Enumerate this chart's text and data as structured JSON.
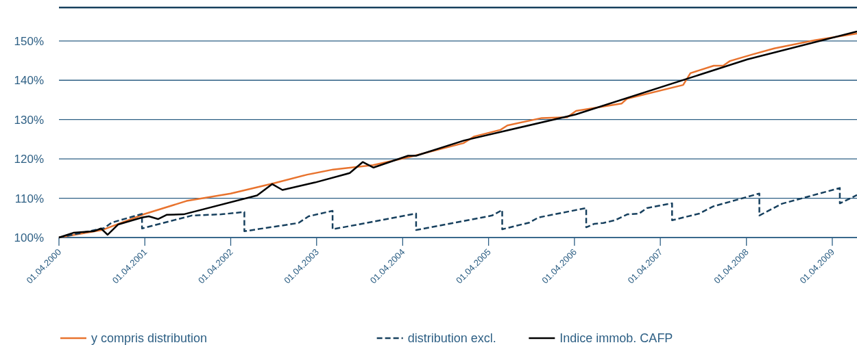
{
  "chart_data": {
    "type": "line",
    "legend": "bottom",
    "grid": "y",
    "marker": "none",
    "xlim": [
      "2000-04-01",
      "2009-07-15"
    ],
    "xticks": [
      {
        "value": "2000-04-01",
        "label": "01.04.2000"
      },
      {
        "value": "2001-04-01",
        "label": "01.04.2001"
      },
      {
        "value": "2002-04-01",
        "label": "01.04.2002"
      },
      {
        "value": "2003-04-01",
        "label": "01.04.2003"
      },
      {
        "value": "2004-04-01",
        "label": "01.04.2004"
      },
      {
        "value": "2005-04-01",
        "label": "01.04.2005"
      },
      {
        "value": "2006-04-01",
        "label": "01.04.2006"
      },
      {
        "value": "2007-04-01",
        "label": "01.04.2007"
      },
      {
        "value": "2008-04-01",
        "label": "01.04.2008"
      },
      {
        "value": "2009-04-01",
        "label": "01.04.2009"
      }
    ],
    "ylim": [
      100,
      158.5
    ],
    "yticks": [
      {
        "value": 100,
        "label": "100%"
      },
      {
        "value": 110,
        "label": "110%"
      },
      {
        "value": 120,
        "label": "120%"
      },
      {
        "value": 130,
        "label": "130%"
      },
      {
        "value": 140,
        "label": "140%"
      },
      {
        "value": 150,
        "label": "150%"
      }
    ],
    "series": [
      {
        "name": "y compris distribution",
        "color": "#e8732e",
        "line_style": "solid",
        "x": [
          "2000-04-01",
          "2000-10-01",
          "2001-04-01",
          "2001-09-25",
          "2002-04-01",
          "2002-10-01",
          "2003-02-20",
          "2003-06-10",
          "2003-11-27",
          "2004-05-01",
          "2004-12-15",
          "2005-01-30",
          "2005-05-22",
          "2005-06-20",
          "2005-11-13",
          "2006-03-01",
          "2006-04-08",
          "2006-10-19",
          "2006-11-10",
          "2007-07-07",
          "2007-08-07",
          "2007-11-14",
          "2007-12-24",
          "2008-01-22",
          "2008-04-23",
          "2008-07-28",
          "2009-01-17",
          "2009-07-15"
        ],
        "values": [
          100,
          101.9,
          106,
          109.3,
          111.2,
          113.8,
          116,
          117.3,
          118.4,
          120.5,
          124,
          125.7,
          127.4,
          128.5,
          130.4,
          130.6,
          132.2,
          134.1,
          135.3,
          138.8,
          141.8,
          143.7,
          143.7,
          144.9,
          146.5,
          148.1,
          150.2,
          151.9
        ]
      },
      {
        "name": "distribution excl.",
        "color": "#17405e",
        "line_style": "dashed",
        "x": [
          "2000-04-01",
          "2000-10-10",
          "2000-11-11",
          "2001-03-20",
          "2001-03-20",
          "2001-10-18",
          "2002-02-20",
          "2002-05-29",
          "2002-05-29",
          "2003-01-14",
          "2003-02-26",
          "2003-06-08",
          "2003-06-08",
          "2004-05-28",
          "2004-05-28",
          "2005-04-16",
          "2005-05-29",
          "2005-05-29",
          "2005-09-21",
          "2005-10-30",
          "2006-05-21",
          "2006-05-21",
          "2006-06-25",
          "2006-08-02",
          "2006-09-21",
          "2006-11-12",
          "2007-01-01",
          "2007-02-03",
          "2007-05-21",
          "2007-05-21",
          "2007-09-14",
          "2007-11-11",
          "2008-05-26",
          "2008-05-26",
          "2008-08-30",
          "2009-05-03",
          "2009-05-03",
          "2009-07-15"
        ],
        "values": [
          100,
          102.4,
          103.8,
          106,
          102.3,
          105.6,
          105.9,
          106.5,
          101.6,
          103.7,
          105.4,
          106.8,
          102.1,
          106.1,
          101.9,
          105.6,
          107,
          102.1,
          103.8,
          105.1,
          107.5,
          102.6,
          103.5,
          103.7,
          104.4,
          105.9,
          106.1,
          107.5,
          108.7,
          104.4,
          106.1,
          107.9,
          111.2,
          105.6,
          108.6,
          112.6,
          108.7,
          110.8
        ]
      },
      {
        "name": "Indice immob. CAFP",
        "color": "#000000",
        "line_style": "solid",
        "x": [
          "2000-04-01",
          "2000-06-01",
          "2000-08-27",
          "2000-09-27",
          "2000-10-25",
          "2000-12-08",
          "2001-03-20",
          "2001-04-18",
          "2001-05-27",
          "2001-07-04",
          "2001-09-13",
          "2002-07-22",
          "2002-09-24",
          "2002-11-07",
          "2003-03-25",
          "2003-08-20",
          "2003-10-14",
          "2003-11-29",
          "2004-04-24",
          "2004-05-28",
          "2004-12-19",
          "2006-04-06",
          "2008-04-05",
          "2009-07-15"
        ],
        "values": [
          100,
          101.2,
          101.6,
          102.3,
          100.7,
          103.3,
          105.1,
          105.4,
          104.7,
          105.8,
          105.9,
          110.7,
          113.6,
          112.1,
          114,
          116.4,
          119.2,
          117.8,
          120.8,
          120.8,
          124.7,
          131.3,
          145.3,
          152.4
        ]
      }
    ]
  }
}
